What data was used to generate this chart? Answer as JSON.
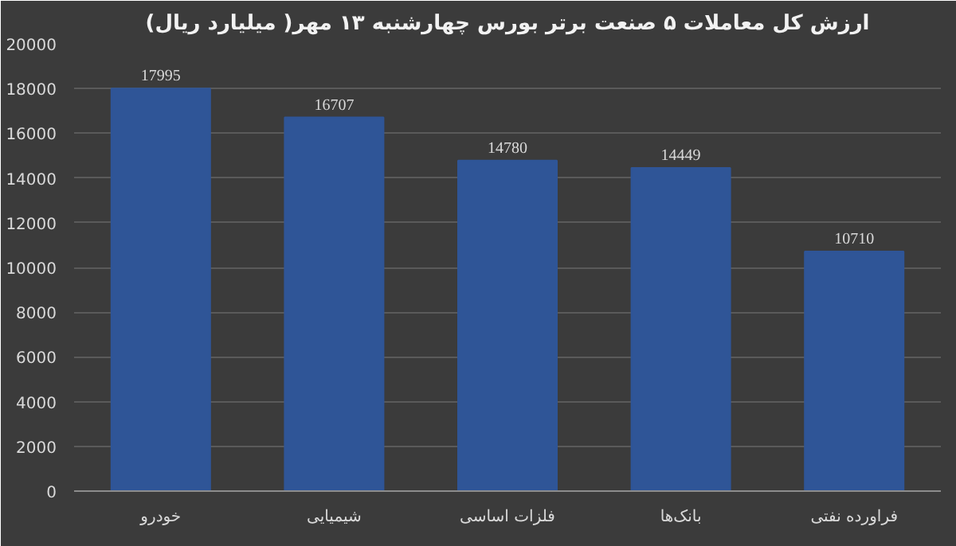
{
  "chart_data": {
    "type": "bar",
    "title": "ارزش کل معاملات ۵ صنعت برتر بورس چهارشنبه ۱۳ مهر( میلیارد ریال)",
    "categories": [
      "خودرو",
      "شیمیایی",
      "فلزات اساسی",
      "بانک‌ها",
      "فراورده نفتی"
    ],
    "values": [
      17995,
      16707,
      14780,
      14449,
      10710
    ],
    "color": "#2f5597",
    "ylim": [
      0,
      20000
    ],
    "yticks": [
      0,
      2000,
      4000,
      6000,
      8000,
      10000,
      12000,
      14000,
      16000,
      18000,
      20000
    ],
    "grid": "y",
    "data_labels": true
  }
}
